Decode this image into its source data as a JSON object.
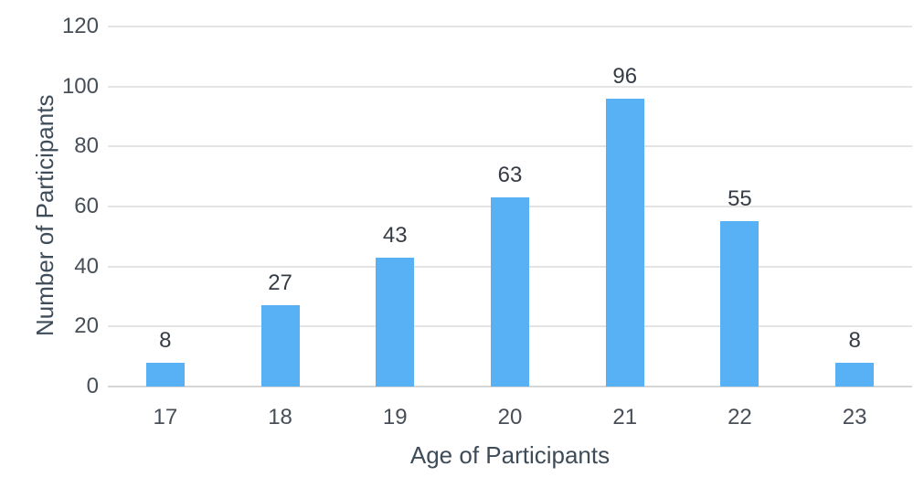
{
  "chart_data": {
    "type": "bar",
    "title": "",
    "categories": [
      "17",
      "18",
      "19",
      "20",
      "21",
      "22",
      "23"
    ],
    "values": [
      8,
      27,
      43,
      63,
      96,
      55,
      8
    ],
    "data_labels": [
      "8",
      "27",
      "43",
      "63",
      "96",
      "55",
      "8"
    ],
    "xlabel": "Age of Participants",
    "ylabel": "Number of Participants",
    "y_ticks": [
      0,
      20,
      40,
      60,
      80,
      100,
      120
    ],
    "ylim": [
      0,
      120
    ],
    "grid": true,
    "legend": "none",
    "colors": {
      "bar": "#58b1f4",
      "gridline": "#e4e4e4",
      "axis_line": "#d6d6d6",
      "data_label": "#363c45",
      "tick_label": "#474e58",
      "axis_title": "#3e4c59",
      "background": "#ffffff"
    }
  }
}
